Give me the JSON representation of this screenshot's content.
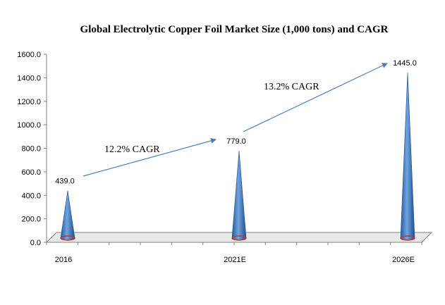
{
  "chart_data": {
    "type": "bar",
    "title": "Global Electrolytic Copper Foil Market Size (1,000  tons) and  CAGR",
    "categories": [
      "2016",
      "2021E",
      "2026E"
    ],
    "values": [
      439.0,
      779.0,
      1445.0
    ],
    "value_labels": [
      "439.0",
      "779.0",
      "1445.0"
    ],
    "ylim": [
      0,
      1600
    ],
    "yticks": [
      "0.0",
      "200.0",
      "400.0",
      "600.0",
      "800.0",
      "1000.0",
      "1200.0",
      "1400.0",
      "1600.0"
    ],
    "annotations": [
      {
        "text": "12.2% CAGR",
        "from": "2016",
        "to": "2021E"
      },
      {
        "text": "13.2% CAGR",
        "from": "2021E",
        "to": "2026E"
      }
    ],
    "grid": false,
    "legend": "none",
    "bar_shape": "cone",
    "colors": {
      "bar": "#4a7ebb",
      "bar_dark": "#1f4e8c",
      "bar_base": "#c0392b",
      "arrow": "#4a7ebb",
      "axis": "#808080"
    }
  }
}
